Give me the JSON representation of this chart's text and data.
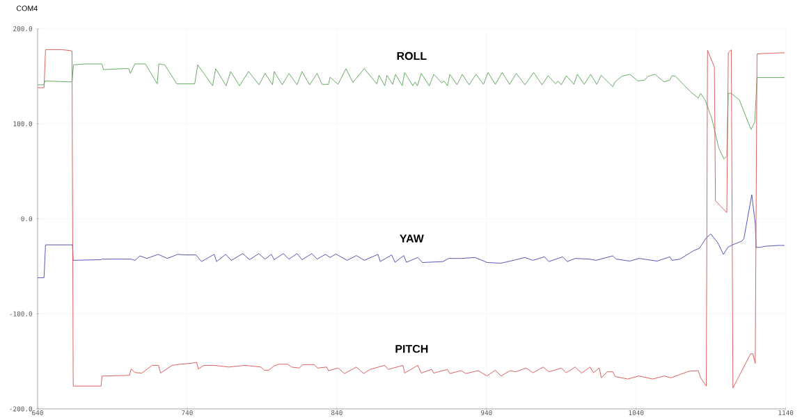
{
  "chart_data": {
    "type": "line",
    "title": "COM4",
    "xlim": [
      640,
      1140
    ],
    "xticks": [
      640,
      740,
      840,
      940,
      1040,
      1140
    ],
    "ylim": [
      -200,
      200
    ],
    "yticks": [
      {
        "value": -200,
        "label": "-200.0"
      },
      {
        "value": -100,
        "label": "-100.0"
      },
      {
        "value": 0,
        "label": "0.0"
      },
      {
        "value": 100,
        "label": "100.0"
      },
      {
        "value": 200,
        "label": "200.0"
      }
    ],
    "grid": true,
    "series": [
      {
        "name": "ROLL",
        "color": "#5fa55a",
        "x": [
          640,
          644,
          645,
          663,
          664,
          672,
          683,
          684,
          697,
          701,
          702,
          705,
          712,
          720,
          721,
          725,
          733,
          739,
          745,
          747,
          757,
          759,
          766,
          769,
          775,
          781,
          788,
          792,
          797,
          798.1,
          803.5,
          808,
          813.4,
          816.7,
          821.8,
          826.8,
          830.1,
          834.4,
          835.5,
          840.8,
          846.1,
          850.7,
          858.3,
          866.7,
          868.2,
          872,
          873.5,
          877.3,
          879.2,
          883.7,
          885.3,
          890.8,
          892.3,
          893.8,
          896.4,
          901.7,
          904.8,
          910.1,
          911.6,
          913.9,
          915.5,
          920.3,
          923.8,
          928.4,
          933,
          938,
          941,
          945.9,
          950.5,
          955.4,
          959.9,
          965.7,
          971.5,
          977.1,
          981.2,
          986.2,
          987.8,
          990,
          993.4,
          998.4,
          1000.7,
          1005.3,
          1009.6,
          1013.7,
          1016.7,
          1024.4,
          1025.9,
          1030.5,
          1035.8,
          1041.2,
          1045.7,
          1048,
          1052.6,
          1058.7,
          1062.5,
          1064,
          1066.3,
          1072.4,
          1076.2,
          1081.5,
          1083.1,
          1086.1,
          1090.7,
          1095.2,
          1098.7,
          1100.6,
          1101.6,
          1103.6,
          1109,
          1113.5,
          1116.8,
          1119.3,
          1120.8,
          1139.2
        ],
        "values": [
          141,
          141,
          145,
          144,
          162,
          163,
          163,
          157,
          158,
          158,
          153,
          163,
          163,
          142,
          163,
          162,
          142,
          142,
          142,
          162,
          140,
          158,
          140,
          155,
          140,
          155,
          141,
          153,
          141,
          155,
          141,
          153,
          141,
          155,
          141,
          153,
          141.5,
          141.5,
          149,
          141.5,
          158,
          143.5,
          158,
          142,
          151,
          140,
          151,
          141.5,
          152,
          140,
          154,
          140,
          144,
          140,
          153,
          140,
          152,
          143,
          145,
          140,
          152,
          141,
          152,
          141,
          152,
          141.5,
          154,
          141.5,
          154,
          141.5,
          153,
          141,
          154,
          141,
          150.5,
          142,
          145,
          141,
          150.5,
          141.5,
          152,
          141.5,
          152,
          141.5,
          151,
          139,
          144,
          150,
          152,
          145,
          146,
          150,
          152,
          144,
          146,
          150.5,
          150,
          140,
          134,
          127,
          132,
          125,
          105,
          74.5,
          63,
          66,
          132,
          132,
          125,
          107,
          94,
          102,
          148.6,
          148.6
        ]
      },
      {
        "name": "YAW",
        "color": "#4b4bb0",
        "x": [
          640,
          644.3,
          645.3,
          663.3,
          663.8,
          682.4,
          683,
          702.5,
          705,
          708.4,
          713,
          720.6,
          726.7,
          733.6,
          739,
          745.8,
          749.6,
          758,
          759.6,
          765.7,
          769.5,
          777.1,
          781.7,
          787.8,
          792,
          796.2,
          798.1,
          804.2,
          808,
          813.4,
          816.7,
          823.3,
          826.8,
          832.4,
          835.5,
          839.3,
          846.9,
          853,
          858.3,
          867.5,
          869,
          876.6,
          878.9,
          884.7,
          886.5,
          894.1,
          897.2,
          910.9,
          914.7,
          923.1,
          932.2,
          940.6,
          949.7,
          958.1,
          965.7,
          971,
          978.7,
          981.7,
          990.9,
          994,
          999.3,
          1008.5,
          1013.1,
          1024.4,
          1026.7,
          1035.8,
          1041.9,
          1054.1,
          1062.5,
          1064,
          1069.3,
          1078.4,
          1082.3,
          1086.9,
          1089.9,
          1094.5,
          1098.3,
          1101.3,
          1104.4,
          1110.5,
          1112,
          1117.3,
          1119.6,
          1120.2,
          1123.2,
          1125.6,
          1134.7,
          1139.2
        ],
        "values": [
          -62,
          -62,
          -27.4,
          -27.4,
          -43.7,
          -43,
          -42.4,
          -42.4,
          -43.7,
          -39,
          -41.7,
          -37.4,
          -41.7,
          -37.4,
          -38,
          -38,
          -45,
          -37.4,
          -45,
          -37.4,
          -43.7,
          -36.6,
          -43,
          -36.6,
          -42.4,
          -37.4,
          -43,
          -36.6,
          -42.4,
          -36.6,
          -43,
          -36.6,
          -42.4,
          -37.4,
          -40.7,
          -37,
          -43.7,
          -38.7,
          -43.7,
          -37.4,
          -45,
          -38,
          -45.7,
          -38.7,
          -45.7,
          -40.7,
          -46,
          -45,
          -41.7,
          -41.7,
          -40.7,
          -46,
          -46.7,
          -43.7,
          -40.7,
          -43.7,
          -40,
          -45,
          -40,
          -45,
          -41.7,
          -42.4,
          -43.7,
          -39,
          -42.4,
          -44.5,
          -41.7,
          -44.5,
          -40,
          -43.7,
          -42.4,
          -33.6,
          -31,
          -20,
          -16,
          -25,
          -37.4,
          -30,
          -27.4,
          -23.6,
          -21,
          25.4,
          -5,
          -30,
          -30,
          -29,
          -28,
          -28
        ]
      },
      {
        "name": "PITCH",
        "color": "#d95555",
        "x": [
          640,
          644.3,
          645.3,
          656,
          662,
          663,
          663.8,
          682.4,
          683.1,
          701.4,
          702.5,
          705,
          709.7,
          716.6,
          720.8,
          722.2,
          729.9,
          735.2,
          742.8,
          746.3,
          747.4,
          751.2,
          758,
          767.9,
          778.6,
          789.3,
          791.5,
          794.5,
          798.1,
          801.2,
          807.3,
          809.6,
          814.9,
          817.2,
          824.8,
          827.1,
          833.2,
          834.4,
          840.8,
          845.1,
          853,
          857.9,
          862.1,
          872,
          874.3,
          884.2,
          885.3,
          894.1,
          896.4,
          903.3,
          904.8,
          913.9,
          915.5,
          923.1,
          926.1,
          934.5,
          940.3,
          945.9,
          949.7,
          955.8,
          959.6,
          966.5,
          971,
          977.9,
          981.7,
          990.1,
          993.2,
          999.3,
          1003.5,
          1009.2,
          1011.5,
          1015.3,
          1016.8,
          1020.6,
          1024.4,
          1026,
          1034.3,
          1041.9,
          1051.1,
          1058.7,
          1063.3,
          1075.5,
          1081.5,
          1083.1,
          1086.9,
          1087.7,
          1092.3,
          1093,
          1100.6,
          1101.6,
          1103.6,
          1104.7,
          1116.5,
          1118,
          1119.6,
          1120.8,
          1125.7,
          1139.2
        ],
        "values": [
          138,
          138,
          178,
          178,
          177,
          176.5,
          -176,
          -176,
          -165.5,
          -164.7,
          -158,
          -161.8,
          -162.3,
          -154.2,
          -154.2,
          -162.3,
          -154.2,
          -153,
          -152,
          -151,
          -158,
          -154.2,
          -154.2,
          -156,
          -154.2,
          -156,
          -159.3,
          -159.3,
          -154.7,
          -153,
          -153,
          -156,
          -157,
          -153.5,
          -153.5,
          -157,
          -156,
          -159.8,
          -157,
          -162.8,
          -156,
          -162.8,
          -158.5,
          -154.2,
          -158.5,
          -154.2,
          -162.3,
          -154.2,
          -162.3,
          -158.5,
          -162.3,
          -158.5,
          -162.8,
          -159.8,
          -162.8,
          -159.8,
          -165.4,
          -159.3,
          -165.4,
          -159.8,
          -161,
          -157,
          -162,
          -156,
          -161,
          -157,
          -162,
          -156,
          -162.3,
          -156,
          -162,
          -157,
          -167.3,
          -161,
          -161,
          -166,
          -168.6,
          -165.4,
          -168.6,
          -165.4,
          -167.3,
          -160.3,
          -159.8,
          -167.3,
          -176,
          177.3,
          159.7,
          19,
          6.5,
          174.8,
          177.8,
          -178,
          -142,
          -142,
          -152,
          173.5,
          174,
          174.8
        ]
      }
    ]
  }
}
